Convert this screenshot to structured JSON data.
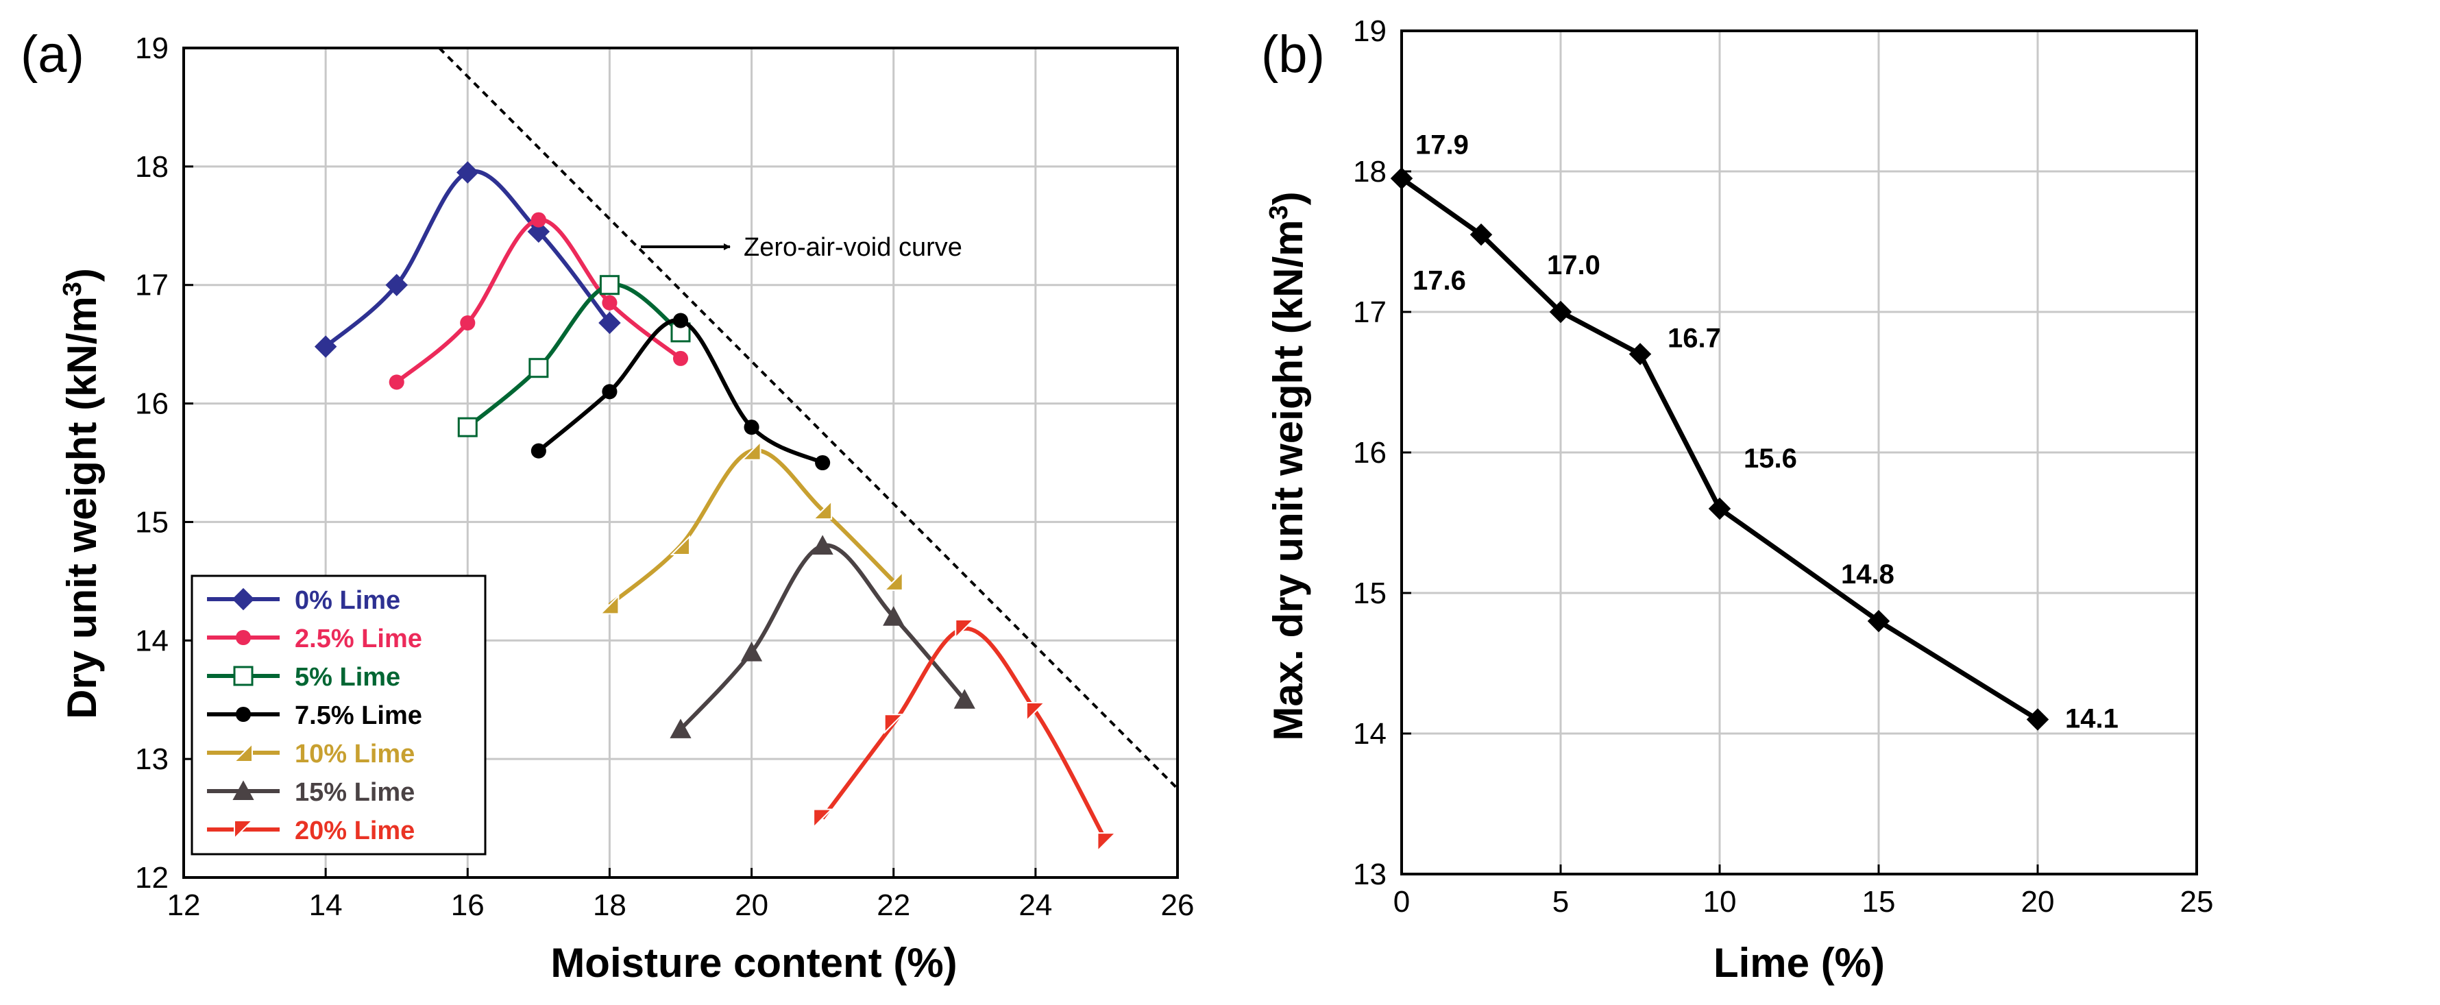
{
  "chart_data": [
    {
      "panel_label": "(a)",
      "type": "line",
      "xlabel": "Moisture content (%)",
      "ylabel": "Dry unit weight (kN/m",
      "ylabel_sup": "3",
      "ylabel_close": ")",
      "xlim": [
        12,
        26
      ],
      "ylim": [
        12,
        19
      ],
      "xticks": [
        "12",
        "14",
        "16",
        "18",
        "20",
        "22",
        "24",
        "26"
      ],
      "yticks": [
        "12",
        "13",
        "14",
        "15",
        "16",
        "17",
        "18",
        "19"
      ],
      "grid": true,
      "legend_position": "bottom-left",
      "series": [
        {
          "name": "0% Lime",
          "color": "#2e3192",
          "marker": "diamond",
          "x": [
            14,
            15,
            16,
            17,
            18
          ],
          "y": [
            16.48,
            17.0,
            17.95,
            17.45,
            16.68
          ]
        },
        {
          "name": "2.5% Lime",
          "color": "#ec2a5a",
          "marker": "circle",
          "x": [
            15,
            16,
            17,
            18,
            19
          ],
          "y": [
            16.18,
            16.68,
            17.55,
            16.85,
            16.38
          ]
        },
        {
          "name": "5% Lime",
          "color": "#006633",
          "marker": "square-open",
          "x": [
            16,
            17,
            18,
            19
          ],
          "y": [
            15.8,
            16.3,
            17.0,
            16.6
          ]
        },
        {
          "name": "7.5% Lime",
          "color": "#000000",
          "marker": "circle",
          "x": [
            17,
            18,
            19,
            20,
            21
          ],
          "y": [
            15.6,
            16.1,
            16.7,
            15.8,
            15.5
          ]
        },
        {
          "name": "10% Lime",
          "color": "#c8a030",
          "marker": "tri-right",
          "x": [
            18,
            19,
            20,
            21,
            22
          ],
          "y": [
            14.3,
            14.8,
            15.6,
            15.1,
            14.5
          ]
        },
        {
          "name": "15% Lime",
          "color": "#4a4244",
          "marker": "triangle",
          "x": [
            19,
            20,
            21,
            22,
            23
          ],
          "y": [
            13.25,
            13.9,
            14.8,
            14.2,
            13.5
          ]
        },
        {
          "name": "20% Lime",
          "color": "#ea3324",
          "marker": "tri-left",
          "x": [
            21,
            22,
            23,
            24,
            25
          ],
          "y": [
            12.5,
            13.3,
            14.1,
            13.4,
            12.3
          ]
        }
      ],
      "reference_line": {
        "name": "Zero-air-void curve",
        "x": [
          15.6,
          26
        ],
        "y": [
          19.0,
          12.75
        ]
      },
      "annotation": "Zero-air-void curve"
    },
    {
      "panel_label": "(b)",
      "type": "line",
      "xlabel": "Lime (%)",
      "ylabel": "Max. dry unit weight (kN/m",
      "ylabel_sup": "3",
      "ylabel_close": ")",
      "xlim": [
        0,
        25
      ],
      "ylim": [
        13,
        19
      ],
      "xticks": [
        "0",
        "5",
        "10",
        "15",
        "20",
        "25"
      ],
      "yticks": [
        "13",
        "14",
        "15",
        "16",
        "17",
        "18",
        "19"
      ],
      "grid": true,
      "series": [
        {
          "name": "Max. dry unit weight",
          "color": "#000000",
          "marker": "diamond",
          "x": [
            0,
            2.5,
            5,
            7.5,
            10,
            15,
            20
          ],
          "y": [
            17.95,
            17.55,
            17.0,
            16.7,
            15.6,
            14.8,
            14.1
          ]
        }
      ],
      "data_labels": [
        "17.9",
        "17.6",
        "17.0",
        "16.7",
        "15.6",
        "14.8",
        "14.1"
      ]
    }
  ]
}
